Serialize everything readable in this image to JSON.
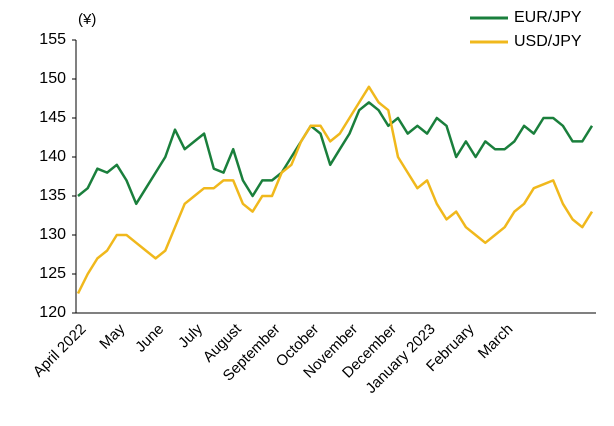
{
  "chart_data": {
    "type": "line",
    "unit_label": "(¥)",
    "categories": [
      "April 2022",
      null,
      null,
      null,
      "May",
      null,
      null,
      null,
      "June",
      null,
      null,
      null,
      "July",
      null,
      null,
      null,
      "August",
      null,
      null,
      null,
      "September",
      null,
      null,
      null,
      "October",
      null,
      null,
      null,
      "November",
      null,
      null,
      null,
      "December",
      null,
      null,
      null,
      "January 2023",
      null,
      null,
      null,
      "February",
      null,
      null,
      null,
      "March",
      null,
      null,
      null,
      null,
      null,
      null,
      null,
      null,
      null
    ],
    "series": [
      {
        "name": "EUR/JPY",
        "color": "#1a7f3c",
        "values": [
          135,
          136,
          138.5,
          138,
          139,
          137,
          134,
          136,
          138,
          140,
          143.5,
          141,
          142,
          143,
          138.5,
          138,
          141,
          137,
          135,
          137,
          137,
          138,
          140,
          142,
          144,
          143,
          139,
          141,
          143,
          146,
          147,
          146,
          144,
          145,
          143,
          144,
          143,
          145,
          144,
          140,
          142,
          140,
          142,
          141,
          141,
          142,
          144,
          143,
          145,
          145,
          144,
          142,
          142,
          144
        ]
      },
      {
        "name": "USD/JPY",
        "color": "#f0b81c",
        "values": [
          122.5,
          125,
          127,
          128,
          130,
          130,
          129,
          128,
          127,
          128,
          131,
          134,
          135,
          136,
          136,
          137,
          137,
          134,
          133,
          135,
          135,
          138,
          139,
          142,
          144,
          144,
          142,
          143,
          145,
          147,
          149,
          147,
          146,
          140,
          138,
          136,
          137,
          134,
          132,
          133,
          131,
          130,
          129,
          130,
          131,
          133,
          134,
          136,
          136.5,
          137,
          134,
          132,
          131,
          133
        ]
      }
    ],
    "ylim": [
      120,
      155
    ],
    "yticks": [
      120,
      125,
      130,
      135,
      140,
      145,
      150,
      155
    ],
    "legend": "top-right"
  }
}
